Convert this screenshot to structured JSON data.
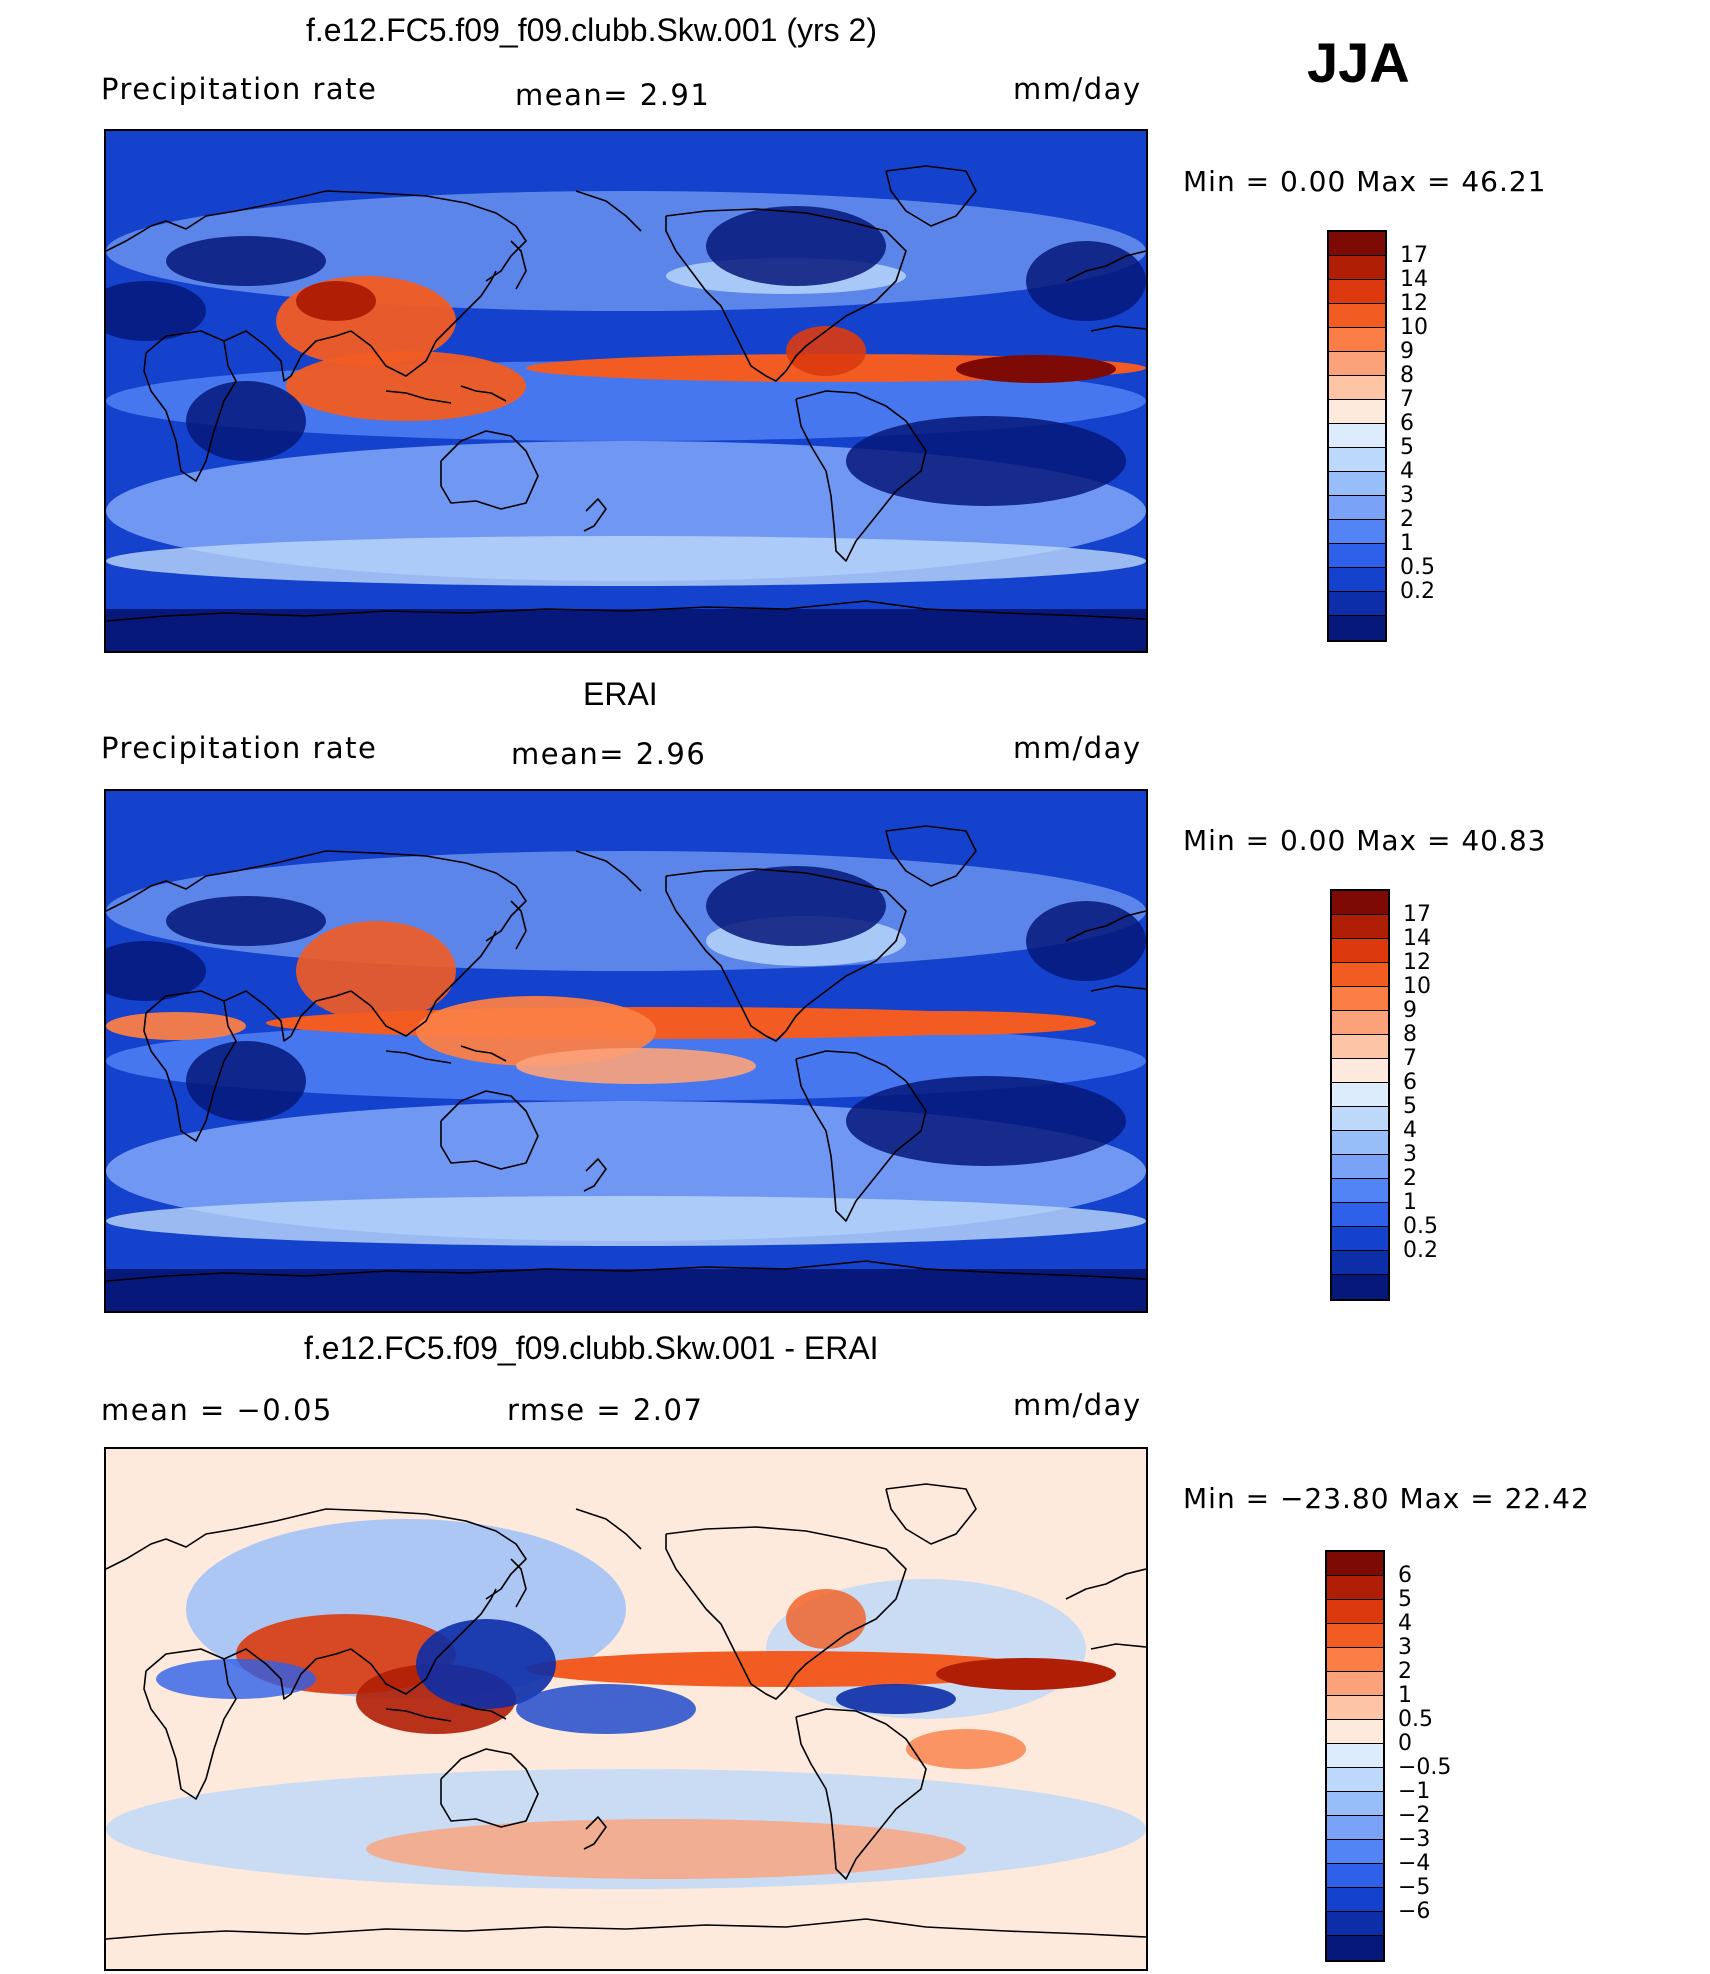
{
  "season": "JJA",
  "panels": [
    {
      "title": "f.e12.FC5.f09_f09.clubb.Skw.001 (yrs 2)",
      "left_label": "Precipitation  rate",
      "mid_label": "mean=    2.91",
      "units": "mm/day",
      "minmax": "Min  =     0.00  Max  =     46.21",
      "colorbar_labels": [
        "17",
        "14",
        "12",
        "10",
        "9",
        "8",
        "7",
        "6",
        "5",
        "4",
        "3",
        "2",
        "1",
        "0.5",
        "0.2"
      ],
      "colors": [
        "#7e0a06",
        "#b01e06",
        "#dc3a0e",
        "#f25c22",
        "#fa7e46",
        "#fca27a",
        "#fec4a6",
        "#feeadc",
        "#dcecfc",
        "#bcd8fa",
        "#98befa",
        "#7aa2f6",
        "#5284f6",
        "#2e60ea",
        "#1442cc",
        "#0c2ea8",
        "#06187a"
      ]
    },
    {
      "title": "ERAI",
      "left_label": "Precipitation  rate",
      "mid_label": "mean=    2.96",
      "units": "mm/day",
      "minmax": "Min  =     0.00  Max  =     40.83",
      "colorbar_labels": [
        "17",
        "14",
        "12",
        "10",
        "9",
        "8",
        "7",
        "6",
        "5",
        "4",
        "3",
        "2",
        "1",
        "0.5",
        "0.2"
      ],
      "colors": [
        "#7e0a06",
        "#b01e06",
        "#dc3a0e",
        "#f25c22",
        "#fa7e46",
        "#fca27a",
        "#fec4a6",
        "#feeadc",
        "#dcecfc",
        "#bcd8fa",
        "#98befa",
        "#7aa2f6",
        "#5284f6",
        "#2e60ea",
        "#1442cc",
        "#0c2ea8",
        "#06187a"
      ]
    },
    {
      "title": "f.e12.FC5.f09_f09.clubb.Skw.001 - ERAI",
      "left_label": "mean  =   −0.05",
      "mid_label": "rmse  =    2.07",
      "units": "mm/day",
      "minmax": "Min  = −23.80  Max  =    22.42",
      "colorbar_labels": [
        "6",
        "5",
        "4",
        "3",
        "2",
        "1",
        "0.5",
        "0",
        "−0.5",
        "−1",
        "−2",
        "−3",
        "−4",
        "−5",
        "−6"
      ],
      "colors": [
        "#7e0a06",
        "#b01e06",
        "#dc3a0e",
        "#f25c22",
        "#fa7e46",
        "#fca27a",
        "#fec4a6",
        "#feeadc",
        "#dcecfc",
        "#bcd8fa",
        "#98befa",
        "#7aa2f6",
        "#5284f6",
        "#2e60ea",
        "#1442cc",
        "#0c2ea8",
        "#06187a"
      ]
    }
  ]
}
